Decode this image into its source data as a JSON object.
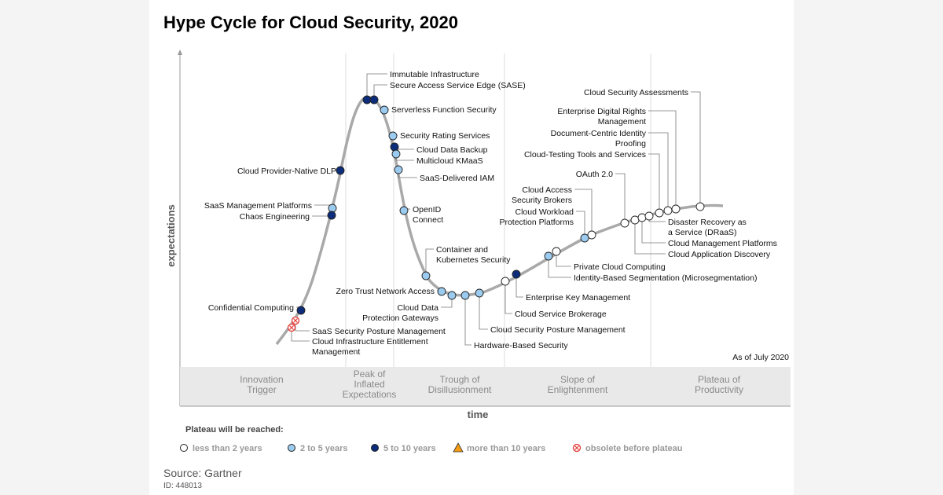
{
  "title": "Hype Cycle for Cloud Security, 2020",
  "y_axis_label": "expectations",
  "x_axis_label": "time",
  "as_of": "As of July 2020",
  "phases": [
    [
      "Innovation",
      "Trigger"
    ],
    [
      "Peak of",
      "Inflated",
      "Expectations"
    ],
    [
      "Trough of",
      "Disillusionment"
    ],
    [
      "Slope of",
      "Enlightenment"
    ],
    [
      "Plateau of",
      "Productivity"
    ]
  ],
  "legend": {
    "heading": "Plateau will be reached:",
    "items": [
      {
        "key": "lt2",
        "label": "less than 2 years"
      },
      {
        "key": "2to5",
        "label": "2 to 5 years"
      },
      {
        "key": "5to10",
        "label": "5 to 10 years"
      },
      {
        "key": "gt10",
        "label": "more than 10 years"
      },
      {
        "key": "obsolete",
        "label": "obsolete before plateau"
      }
    ]
  },
  "colors": {
    "lt2": "#ffffff",
    "2to5": "#9ccbf0",
    "5to10": "#0d2d7a",
    "gt10": "#f39c12",
    "obsolete": "#e53935",
    "curve": "#a9a9a9",
    "band": "#e9e9e9"
  },
  "technologies": [
    {
      "label": [
        "Immutable Infrastructure"
      ],
      "plateau": "5to10"
    },
    {
      "label": [
        "Secure Access Service Edge (SASE)"
      ],
      "plateau": "5to10"
    },
    {
      "label": [
        "Serverless Function Security"
      ],
      "plateau": "2to5"
    },
    {
      "label": [
        "Security Rating Services"
      ],
      "plateau": "2to5"
    },
    {
      "label": [
        "Cloud Data Backup"
      ],
      "plateau": "5to10"
    },
    {
      "label": [
        "Multicloud KMaaS"
      ],
      "plateau": "2to5"
    },
    {
      "label": [
        "SaaS-Delivered IAM"
      ],
      "plateau": "2to5"
    },
    {
      "label": [
        "OpenID",
        "Connect"
      ],
      "plateau": "2to5"
    },
    {
      "label": [
        "Container and",
        "Kubernetes Security"
      ],
      "plateau": "2to5"
    },
    {
      "label": [
        "Zero Trust Network Access"
      ],
      "plateau": "2to5"
    },
    {
      "label": [
        "Cloud Data",
        "Protection Gateways"
      ],
      "plateau": "2to5"
    },
    {
      "label": [
        "Hardware-Based Security"
      ],
      "plateau": "2to5"
    },
    {
      "label": [
        "Cloud Security Posture Management"
      ],
      "plateau": "2to5"
    },
    {
      "label": [
        "Cloud Service Brokerage"
      ],
      "plateau": "lt2"
    },
    {
      "label": [
        "Enterprise Key Management"
      ],
      "plateau": "5to10"
    },
    {
      "label": [
        "Identity-Based Segmentation (Microsegmentation)"
      ],
      "plateau": "2to5"
    },
    {
      "label": [
        "Private Cloud Computing"
      ],
      "plateau": "lt2"
    },
    {
      "label": [
        "Cloud Workload",
        "Protection Platforms"
      ],
      "plateau": "2to5"
    },
    {
      "label": [
        "Cloud Access",
        "Security Brokers"
      ],
      "plateau": "lt2"
    },
    {
      "label": [
        "OAuth 2.0"
      ],
      "plateau": "lt2"
    },
    {
      "label": [
        "Cloud Application Discovery"
      ],
      "plateau": "lt2"
    },
    {
      "label": [
        "Cloud Management Platforms"
      ],
      "plateau": "lt2"
    },
    {
      "label": [
        "Disaster Recovery as",
        "a Service (DRaaS)"
      ],
      "plateau": "lt2"
    },
    {
      "label": [
        "Cloud-Testing Tools and Services"
      ],
      "plateau": "lt2"
    },
    {
      "label": [
        "Document-Centric Identity",
        "Proofing"
      ],
      "plateau": "lt2"
    },
    {
      "label": [
        "Enterprise Digital Rights",
        "Management"
      ],
      "plateau": "lt2"
    },
    {
      "label": [
        "Cloud Security Assessments"
      ],
      "plateau": "lt2"
    },
    {
      "label": [
        "Cloud Provider-Native DLP"
      ],
      "plateau": "5to10"
    },
    {
      "label": [
        "SaaS Management Platforms"
      ],
      "plateau": "2to5"
    },
    {
      "label": [
        "Chaos Engineering"
      ],
      "plateau": "5to10"
    },
    {
      "label": [
        "Confidential Computing"
      ],
      "plateau": "5to10"
    },
    {
      "label": [
        "SaaS Security Posture Management"
      ],
      "plateau": "obsolete"
    },
    {
      "label": [
        "Cloud Infrastructure Entitlement",
        "Management"
      ],
      "plateau": "obsolete"
    }
  ],
  "source": "Source: Gartner",
  "doc_id": "ID: 448013"
}
